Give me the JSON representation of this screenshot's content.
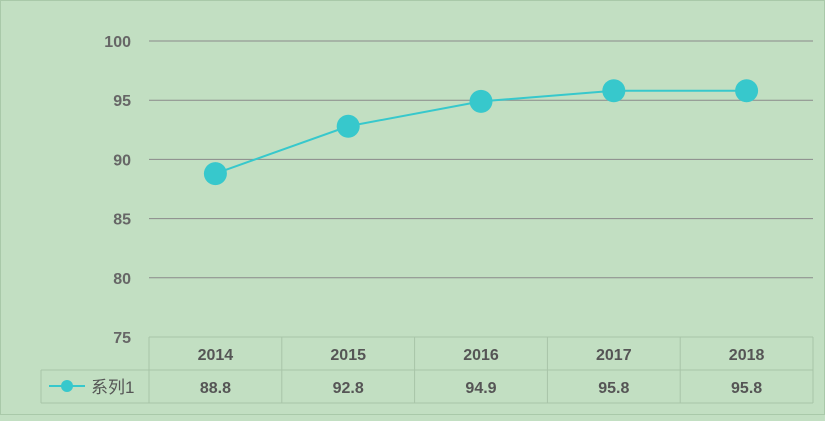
{
  "chart_data": {
    "type": "line",
    "title": "",
    "xlabel": "",
    "ylabel": "",
    "categories": [
      "2014",
      "2015",
      "2016",
      "2017",
      "2018"
    ],
    "series": [
      {
        "name": "系列1",
        "values": [
          88.8,
          92.8,
          94.9,
          95.8,
          95.8
        ],
        "labels": [
          "88.8",
          "92.8",
          "94.9",
          "95.8",
          "95.8"
        ],
        "color": "#37c8cc"
      }
    ],
    "ylim": [
      75,
      100
    ],
    "yticks": [
      {
        "value": 75,
        "label": "75"
      },
      {
        "value": 80,
        "label": "80"
      },
      {
        "value": 85,
        "label": "85"
      },
      {
        "value": 90,
        "label": "90"
      },
      {
        "value": 95,
        "label": "95"
      },
      {
        "value": 100,
        "label": "100"
      }
    ],
    "grid": true,
    "legend": "data-table",
    "data_table": true
  },
  "colors": {
    "background": "#c2dfc2",
    "gridline": "#8a8a8a",
    "table_border": "#a8c4a8",
    "series": "#37c8cc"
  }
}
